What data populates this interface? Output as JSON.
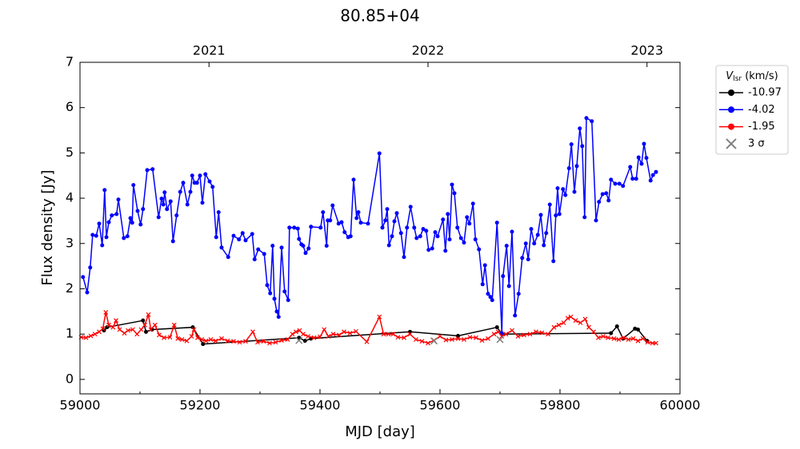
{
  "chart_data": {
    "type": "line",
    "title": "80.85+04",
    "xlabel": "MJD [day]",
    "ylabel": "Flux density [Jy]",
    "xlim": [
      59000,
      60000
    ],
    "ylim": [
      -0.32,
      7
    ],
    "xticks": [
      59000,
      59200,
      59400,
      59600,
      59800,
      60000
    ],
    "xminorticks": [
      59100,
      59300,
      59500,
      59700,
      59900
    ],
    "yticks": [
      0,
      1,
      2,
      3,
      4,
      5,
      6,
      7
    ],
    "x2ticks": [
      {
        "value": 59215,
        "label": "2021"
      },
      {
        "value": 59580,
        "label": "2022"
      },
      {
        "value": 59945,
        "label": "2023"
      }
    ],
    "legend_title": {
      "main": "V",
      "sub": "lsr",
      "rest": " (km/s)"
    },
    "legend": "outside upper right",
    "series": [
      {
        "name": "-10.97",
        "color": "#000000",
        "marker": "o",
        "line": true,
        "x": [
          59040,
          59045,
          59105,
          59110,
          59120,
          59188,
          59205,
          59365,
          59375,
          59385,
          59550,
          59630,
          59695,
          59703,
          59885,
          59895,
          59905,
          59925,
          59930,
          59945
        ],
        "values": [
          1.08,
          1.15,
          1.3,
          1.05,
          1.1,
          1.15,
          0.78,
          0.92,
          0.85,
          0.9,
          1.05,
          0.96,
          1.15,
          1.0,
          1.02,
          1.17,
          0.9,
          1.12,
          1.1,
          0.85
        ]
      },
      {
        "name": "-4.02",
        "color": "#0000ff",
        "marker": "o",
        "line": true,
        "x": [
          59005,
          59012,
          59017,
          59021,
          59027,
          59032,
          59037,
          59041,
          59044,
          59048,
          59053,
          59061,
          59064,
          59073,
          59079,
          59084,
          59087,
          59089,
          59096,
          59101,
          59105,
          59112,
          59121,
          59131,
          59136,
          59139,
          59141,
          59145,
          59151,
          59155,
          59161,
          59167,
          59172,
          59179,
          59184,
          59187,
          59191,
          59195,
          59200,
          59204,
          59209,
          59216,
          59221,
          59227,
          59231,
          59236,
          59247,
          59256,
          59265,
          59271,
          59276,
          59287,
          59291,
          59297,
          59307,
          59312,
          59317,
          59321,
          59324,
          59328,
          59331,
          59336,
          59341,
          59347,
          59349,
          59357,
          59363,
          59365,
          59369,
          59372,
          59376,
          59381,
          59385,
          59401,
          59405,
          59411,
          59413,
          59417,
          59421,
          59431,
          59436,
          59441,
          59447,
          59451,
          59456,
          59461,
          59464,
          59468,
          59480,
          59499,
          59504,
          59509,
          59512,
          59515,
          59520,
          59524,
          59528,
          59535,
          59540,
          59545,
          59551,
          59557,
          59561,
          59567,
          59572,
          59577,
          59581,
          59587,
          59592,
          59596,
          59605,
          59609,
          59613,
          59616,
          59620,
          59624,
          59629,
          59635,
          59640,
          59645,
          59649,
          59655,
          59659,
          59665,
          59671,
          59675,
          59680,
          59684,
          59687,
          59695,
          59703,
          59705,
          59711,
          59715,
          59720,
          59725,
          59731,
          59737,
          59743,
          59747,
          59752,
          59757,
          59763,
          59768,
          59773,
          59777,
          59783,
          59789,
          59793,
          59796,
          59799,
          59805,
          59809,
          59815,
          59819,
          59824,
          59828,
          59833,
          59837,
          59841,
          59844,
          59853,
          59860,
          59865,
          59871,
          59877,
          59881,
          59885,
          59892,
          59899,
          59905,
          59917,
          59921,
          59927,
          59931,
          59936,
          59940,
          59944,
          59951,
          59955,
          59960
        ],
        "values": [
          2.26,
          1.92,
          2.47,
          3.19,
          3.17,
          3.44,
          2.96,
          4.18,
          3.14,
          3.47,
          3.62,
          3.65,
          3.97,
          3.12,
          3.16,
          3.56,
          3.46,
          4.29,
          3.72,
          3.42,
          3.76,
          4.62,
          4.64,
          3.58,
          3.99,
          3.86,
          4.13,
          3.76,
          3.93,
          3.05,
          3.62,
          4.14,
          4.34,
          3.86,
          4.14,
          4.5,
          4.34,
          4.34,
          4.5,
          3.9,
          4.53,
          4.37,
          4.25,
          3.14,
          3.69,
          2.91,
          2.7,
          3.17,
          3.09,
          3.23,
          3.07,
          3.21,
          2.65,
          2.87,
          2.77,
          2.08,
          1.9,
          2.95,
          1.78,
          1.5,
          1.38,
          2.91,
          1.94,
          1.75,
          3.35,
          3.35,
          3.33,
          3.1,
          2.98,
          2.95,
          2.79,
          2.89,
          3.37,
          3.35,
          3.69,
          2.95,
          3.51,
          3.51,
          3.84,
          3.44,
          3.47,
          3.25,
          3.14,
          3.16,
          4.41,
          3.56,
          3.69,
          3.46,
          3.44,
          4.99,
          3.35,
          3.51,
          3.76,
          2.96,
          3.16,
          3.49,
          3.67,
          3.23,
          2.7,
          3.35,
          3.81,
          3.35,
          3.12,
          3.16,
          3.32,
          3.28,
          2.86,
          2.89,
          3.25,
          3.16,
          3.53,
          2.84,
          3.65,
          3.09,
          4.3,
          4.11,
          3.35,
          3.12,
          3.02,
          3.58,
          3.44,
          3.88,
          3.09,
          2.87,
          2.1,
          2.52,
          1.89,
          1.82,
          1.75,
          3.46,
          1.02,
          2.28,
          2.95,
          2.06,
          3.26,
          1.41,
          1.89,
          2.68,
          3.0,
          2.65,
          3.32,
          3.0,
          3.19,
          3.63,
          2.96,
          3.23,
          3.86,
          2.61,
          3.62,
          4.22,
          3.65,
          4.2,
          4.07,
          4.66,
          5.19,
          4.14,
          4.71,
          5.54,
          5.15,
          3.58,
          5.77,
          5.7,
          3.51,
          3.92,
          4.09,
          4.11,
          3.95,
          4.41,
          4.32,
          4.32,
          4.27,
          4.69,
          4.43,
          4.43,
          4.9,
          4.76,
          5.2,
          4.89,
          4.39,
          4.51,
          4.58
        ]
      },
      {
        "name": "-1.95",
        "color": "#ff0000",
        "marker": "o",
        "point_marker": "x",
        "line": true,
        "x": [
          59002,
          59010,
          59018,
          59025,
          59032,
          59038,
          59043,
          59048,
          59055,
          59060,
          59066,
          59074,
          59080,
          59088,
          59095,
          59102,
          59108,
          59114,
          59118,
          59125,
          59132,
          59140,
          59150,
          59157,
          59163,
          59170,
          59178,
          59186,
          59190,
          59196,
          59203,
          59210,
          59218,
          59226,
          59236,
          59246,
          59256,
          59266,
          59276,
          59288,
          59296,
          59306,
          59316,
          59326,
          59336,
          59346,
          59354,
          59360,
          59366,
          59372,
          59380,
          59390,
          59400,
          59407,
          59414,
          59422,
          59432,
          59440,
          59450,
          59460,
          59478,
          59499,
          59506,
          59514,
          59522,
          59530,
          59540,
          59550,
          59560,
          59570,
          59580,
          59590,
          59600,
          59610,
          59620,
          59630,
          59640,
          59650,
          59660,
          59670,
          59680,
          59690,
          59697,
          59703,
          59710,
          59720,
          59730,
          59740,
          59750,
          59760,
          59770,
          59780,
          59790,
          59798,
          59806,
          59813,
          59818,
          59826,
          59834,
          59842,
          59848,
          59856,
          59864,
          59872,
          59880,
          59890,
          59898,
          59906,
          59914,
          59922,
          59930,
          59938,
          59946,
          59954,
          59960
        ],
        "values": [
          0.93,
          0.92,
          0.96,
          1.0,
          1.05,
          1.12,
          1.48,
          1.2,
          1.15,
          1.3,
          1.1,
          1.02,
          1.08,
          1.1,
          1.0,
          1.1,
          1.2,
          1.43,
          1.1,
          1.2,
          0.98,
          0.92,
          0.93,
          1.2,
          0.9,
          0.88,
          0.85,
          0.95,
          1.1,
          0.92,
          0.88,
          0.85,
          0.88,
          0.85,
          0.9,
          0.85,
          0.84,
          0.82,
          0.84,
          1.05,
          0.82,
          0.84,
          0.8,
          0.82,
          0.86,
          0.88,
          1.0,
          1.05,
          1.08,
          1.0,
          0.95,
          0.92,
          0.94,
          1.1,
          0.95,
          1.0,
          0.98,
          1.05,
          1.02,
          1.06,
          0.83,
          1.38,
          1.0,
          1.0,
          1.0,
          0.93,
          0.92,
          1.0,
          0.88,
          0.84,
          0.8,
          0.86,
          0.95,
          0.87,
          0.88,
          0.9,
          0.88,
          0.93,
          0.92,
          0.86,
          0.9,
          1.0,
          1.05,
          0.95,
          1.0,
          1.08,
          0.95,
          0.98,
          1.0,
          1.05,
          1.03,
          1.0,
          1.15,
          1.2,
          1.25,
          1.35,
          1.38,
          1.3,
          1.25,
          1.33,
          1.15,
          1.05,
          0.92,
          0.95,
          0.92,
          0.9,
          0.88,
          0.92,
          0.88,
          0.9,
          0.85,
          0.9,
          0.82,
          0.8,
          0.8
        ]
      },
      {
        "name": "3 σ",
        "color": "#808080",
        "marker": "x",
        "line": false,
        "x": [
          59365,
          59590,
          59700
        ],
        "values": [
          0.86,
          0.85,
          0.88
        ]
      }
    ]
  }
}
